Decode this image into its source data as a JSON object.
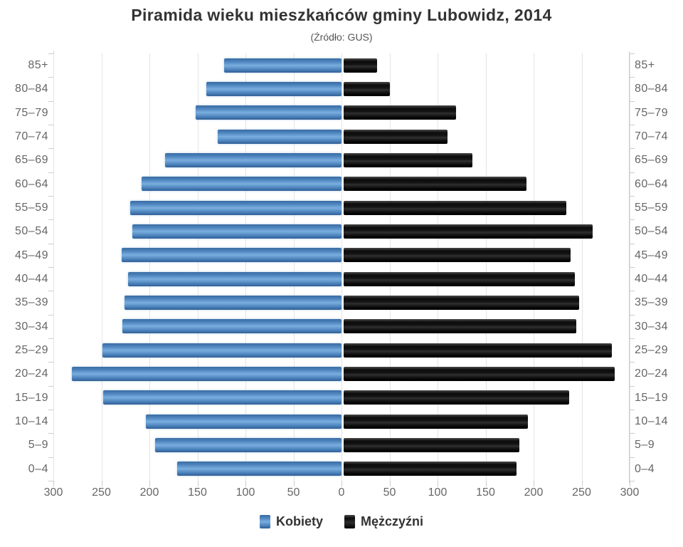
{
  "header": {
    "title": "Piramida wieku mieszkańców gminy Lubowidz, 2014",
    "subtitle": "(Źródło: GUS)"
  },
  "legend": {
    "female_label": "Kobiety",
    "male_label": "Mężczyźni",
    "position": "bottom"
  },
  "colors": {
    "female_bar": "#4d84bd",
    "male_bar": "#111111",
    "gridline": "#e4e4e4",
    "axis_line": "#cccccc",
    "axis_text": "#666666",
    "title_text": "#333333",
    "background": "#ffffff"
  },
  "chart_data": {
    "type": "bar",
    "variant": "population-pyramid",
    "title": "Piramida wieku mieszkańców gminy Lubowidz, 2014",
    "subtitle": "(Źródło: GUS)",
    "categories": [
      "85+",
      "80–84",
      "75–79",
      "70–74",
      "65–69",
      "60–64",
      "55–59",
      "50–54",
      "45–49",
      "40–44",
      "35–39",
      "30–34",
      "25–29",
      "20–24",
      "15–19",
      "10–14",
      "5–9",
      "0–4"
    ],
    "series": [
      {
        "name": "Kobiety",
        "side": "left",
        "color": "#4d84bd",
        "values": [
          122,
          141,
          152,
          129,
          184,
          208,
          220,
          218,
          229,
          222,
          226,
          228,
          249,
          281,
          248,
          204,
          194,
          171
        ]
      },
      {
        "name": "Mężczyźni",
        "side": "right",
        "color": "#111111",
        "values": [
          35,
          48,
          117,
          108,
          134,
          190,
          232,
          259,
          236,
          241,
          245,
          242,
          279,
          282,
          235,
          192,
          183,
          180
        ]
      }
    ],
    "xlim": [
      0,
      300
    ],
    "xticks": [
      0,
      50,
      100,
      150,
      200,
      250,
      300
    ],
    "grid": true,
    "legend_position": "bottom",
    "ylabel_sides": "both"
  }
}
